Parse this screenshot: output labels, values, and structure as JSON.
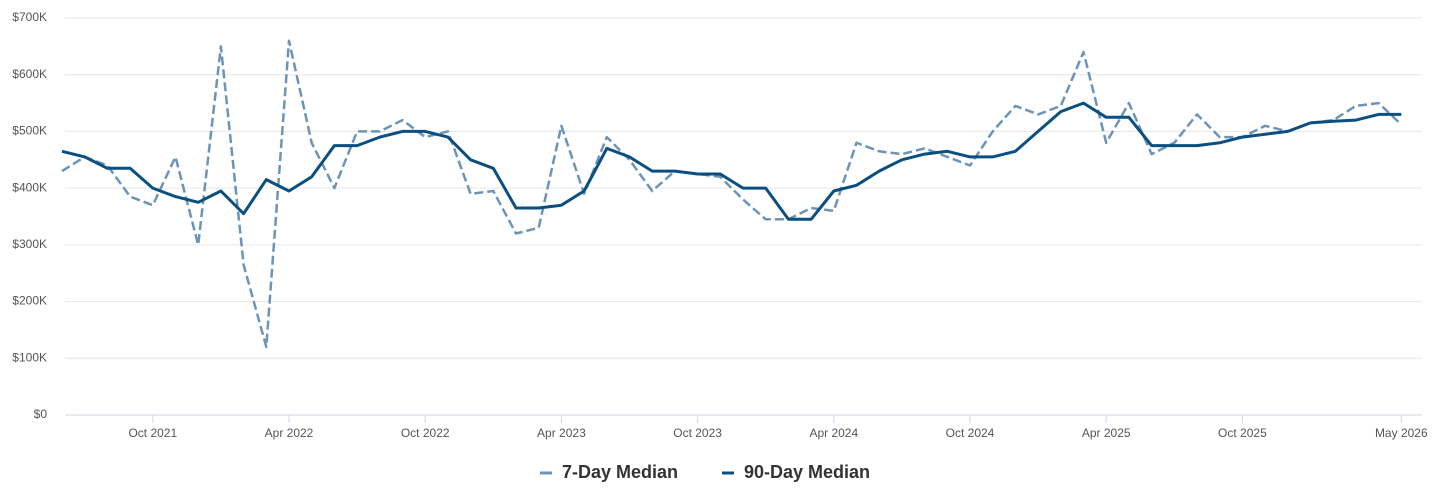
{
  "chart_data": {
    "type": "line",
    "x": [
      "2021-06",
      "2021-07",
      "2021-08",
      "2021-09",
      "2021-10",
      "2021-11",
      "2021-12",
      "2022-01",
      "2022-02",
      "2022-03",
      "2022-04",
      "2022-05",
      "2022-06",
      "2022-07",
      "2022-08",
      "2022-09",
      "2022-10",
      "2022-11",
      "2022-12",
      "2023-01",
      "2023-02",
      "2023-03",
      "2023-04",
      "2023-05",
      "2023-06",
      "2023-07",
      "2023-08",
      "2023-09",
      "2023-10",
      "2023-11",
      "2023-12",
      "2024-01",
      "2024-02",
      "2024-03",
      "2024-04",
      "2024-05",
      "2024-06",
      "2024-07",
      "2024-08",
      "2024-09",
      "2024-10",
      "2024-11",
      "2024-12",
      "2025-01",
      "2025-02",
      "2025-03",
      "2025-04",
      "2025-05",
      "2025-06",
      "2025-07",
      "2025-08",
      "2025-09",
      "2025-10",
      "2025-11",
      "2025-12",
      "2026-01",
      "2026-02",
      "2026-03",
      "2026-04",
      "2026-05"
    ],
    "series": [
      {
        "name": "7-Day Median",
        "color": "#6b95b8",
        "dashed": true,
        "values": [
          430000,
          455000,
          440000,
          385000,
          370000,
          455000,
          300000,
          650000,
          265000,
          120000,
          660000,
          480000,
          400000,
          500000,
          500000,
          520000,
          490000,
          500000,
          390000,
          395000,
          320000,
          330000,
          510000,
          390000,
          490000,
          450000,
          395000,
          430000,
          425000,
          420000,
          380000,
          345000,
          345000,
          365000,
          360000,
          480000,
          465000,
          460000,
          470000,
          455000,
          440000,
          500000,
          545000,
          530000,
          545000,
          640000,
          480000,
          550000,
          460000,
          480000,
          530000,
          490000,
          490000,
          510000,
          500000,
          515000,
          520000,
          545000,
          550000,
          512000
        ]
      },
      {
        "name": "90-Day Median",
        "color": "#0b4f80",
        "dashed": false,
        "values": [
          465000,
          455000,
          435000,
          435000,
          400000,
          385000,
          375000,
          395000,
          355000,
          415000,
          395000,
          420000,
          475000,
          475000,
          490000,
          500000,
          500000,
          490000,
          450000,
          435000,
          365000,
          365000,
          370000,
          395000,
          470000,
          455000,
          430000,
          430000,
          425000,
          425000,
          400000,
          400000,
          345000,
          345000,
          395000,
          405000,
          430000,
          450000,
          460000,
          465000,
          455000,
          455000,
          465000,
          500000,
          535000,
          550000,
          525000,
          525000,
          475000,
          475000,
          475000,
          480000,
          490000,
          495000,
          500000,
          515000,
          518000,
          520000,
          530000,
          530000
        ]
      }
    ],
    "xlim": [
      "2021-06",
      "2026-06"
    ],
    "xticks": [
      {
        "value": "2021-10",
        "label": "Oct 2021"
      },
      {
        "value": "2022-04",
        "label": "Apr 2022"
      },
      {
        "value": "2022-10",
        "label": "Oct 2022"
      },
      {
        "value": "2023-04",
        "label": "Apr 2023"
      },
      {
        "value": "2023-10",
        "label": "Oct 2023"
      },
      {
        "value": "2024-04",
        "label": "Apr 2024"
      },
      {
        "value": "2024-10",
        "label": "Oct 2024"
      },
      {
        "value": "2025-04",
        "label": "Apr 2025"
      },
      {
        "value": "2025-10",
        "label": "Oct 2025"
      },
      {
        "value": "2026-05",
        "label": "May 2026"
      }
    ],
    "ylim": [
      0,
      700000
    ],
    "yticks": [
      {
        "value": 0,
        "label": "$0"
      },
      {
        "value": 100000,
        "label": "$100K"
      },
      {
        "value": 200000,
        "label": "$200K"
      },
      {
        "value": 300000,
        "label": "$300K"
      },
      {
        "value": 400000,
        "label": "$400K"
      },
      {
        "value": 500000,
        "label": "$500K"
      },
      {
        "value": 600000,
        "label": "$600K"
      },
      {
        "value": 700000,
        "label": "$700K"
      }
    ],
    "grid": true,
    "legend": "bottom"
  }
}
